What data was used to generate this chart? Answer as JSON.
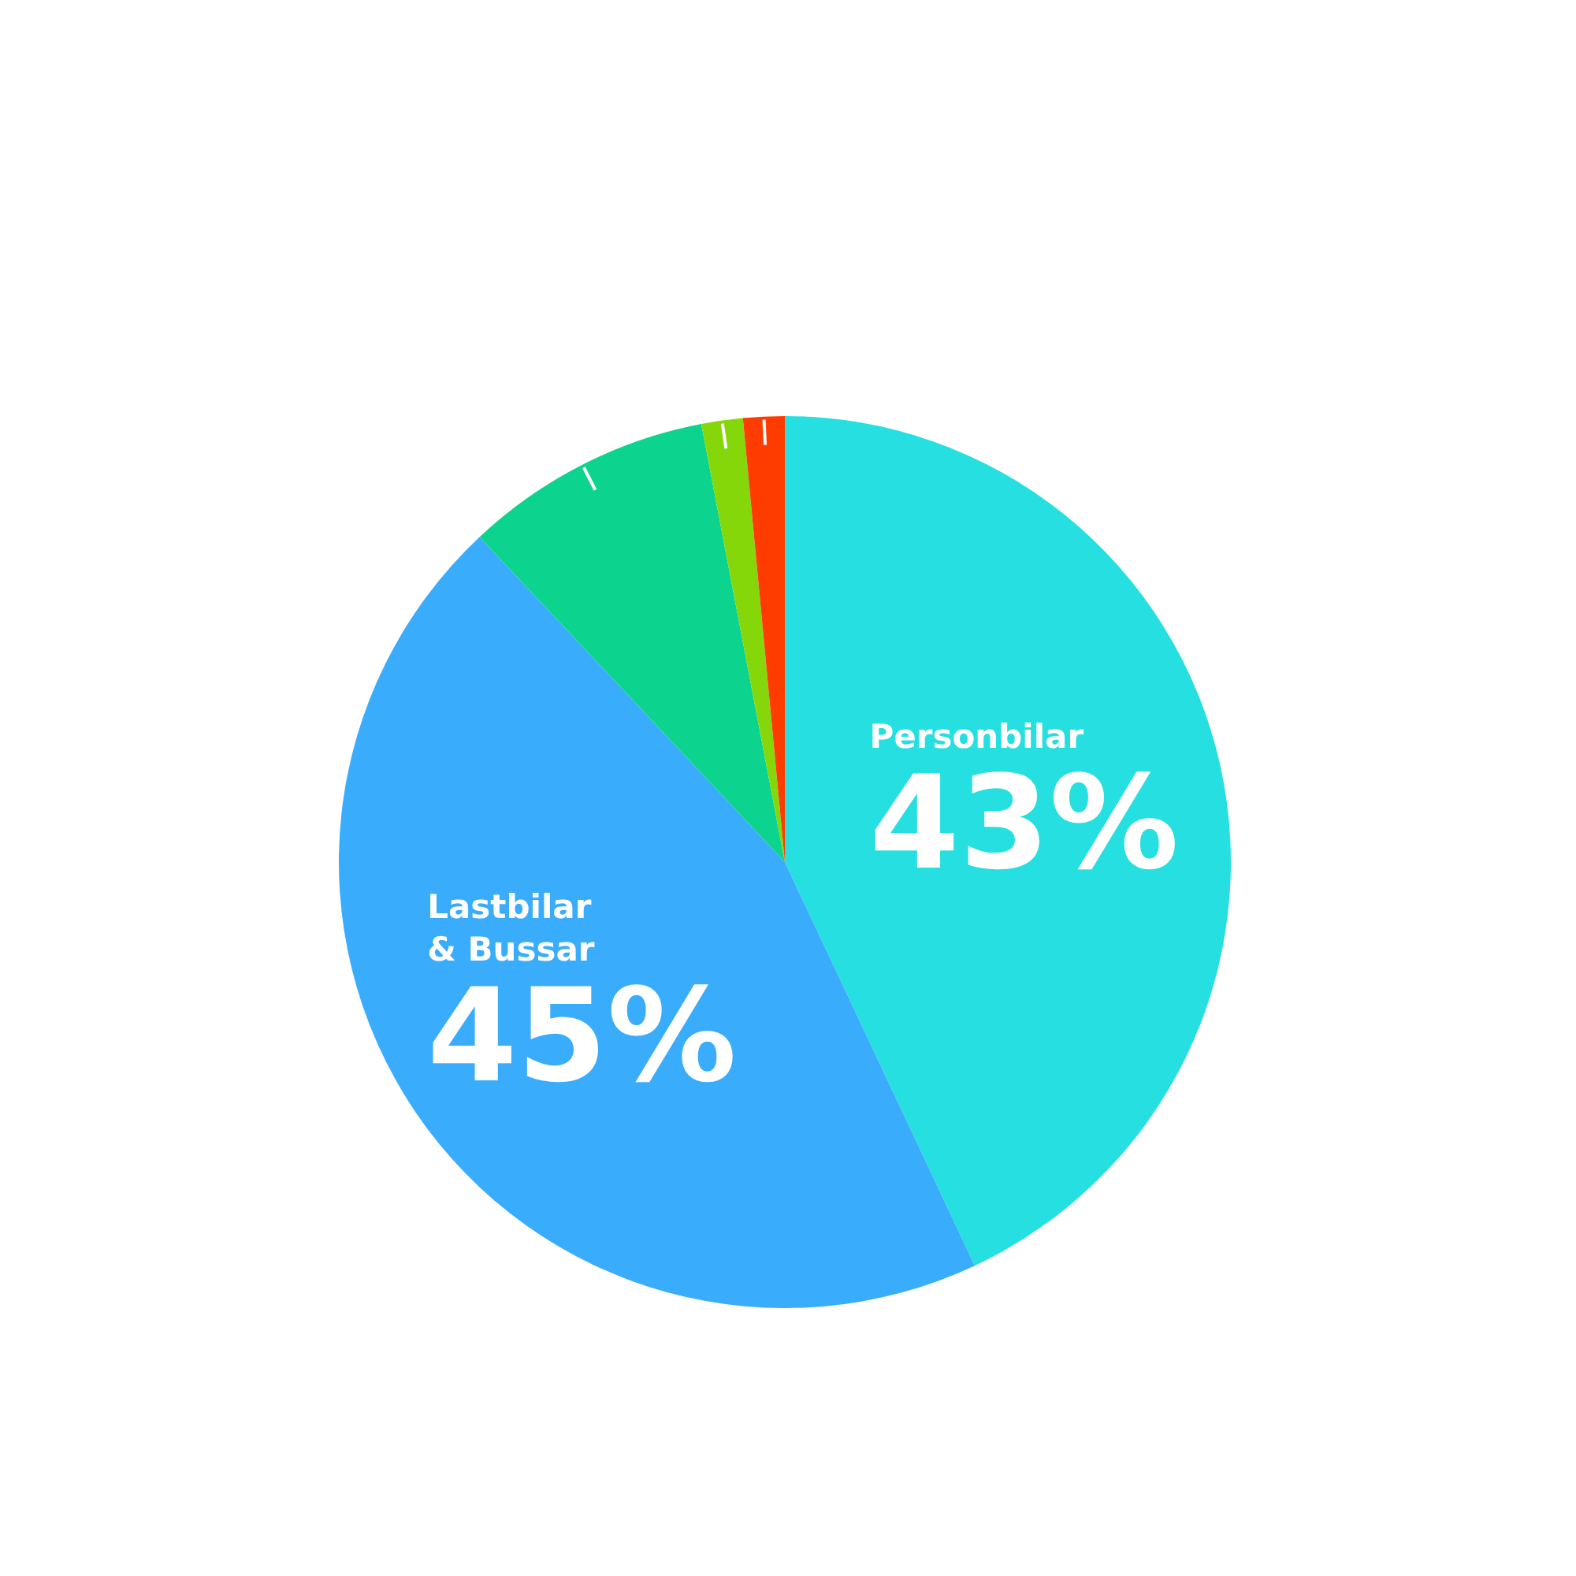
{
  "chart_data": {
    "type": "pie",
    "categories": [
      "Personbilar",
      "Lastbilar & Bussar",
      null,
      null,
      null
    ],
    "values": [
      43,
      45,
      9,
      1.5,
      1.5
    ],
    "colors": [
      "#26dfe0",
      "#3aacfc",
      "#0cd48e",
      "#86d70a",
      "#ff3c00"
    ],
    "value_labels": [
      "43%",
      "45%",
      null,
      null,
      null
    ]
  }
}
